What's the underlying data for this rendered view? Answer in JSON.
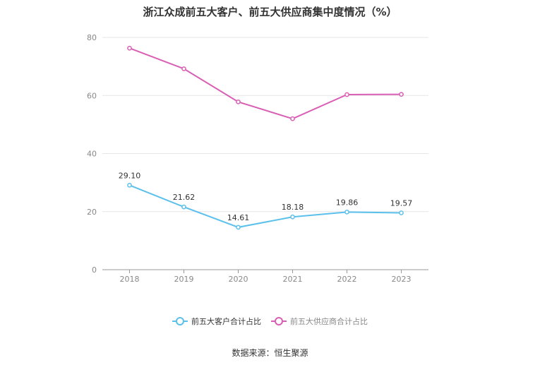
{
  "title": "浙江众成前五大客户、前五大供应商集中度情况（%）",
  "source": "数据来源：恒生聚源",
  "chart_data": {
    "type": "line",
    "title": "浙江众成前五大客户、前五大供应商集中度情况（%）",
    "x": [
      "2018",
      "2019",
      "2020",
      "2021",
      "2022",
      "2023"
    ],
    "ylim": [
      0,
      80
    ],
    "yticks": [
      "0",
      "20",
      "40",
      "60",
      "80"
    ],
    "grid": true,
    "legend_position": "bottom",
    "series": [
      {
        "name": "前五大客户合计占比",
        "color": "#5bc0eb",
        "values": [
          29.1,
          21.62,
          14.61,
          18.18,
          19.86,
          19.57
        ],
        "labels": [
          "29.10",
          "21.62",
          "14.61",
          "18.18",
          "19.86",
          "19.57"
        ]
      },
      {
        "name": "前五大供应商合计占比",
        "color": "#d95fb5",
        "values": [
          76.3,
          69.2,
          57.8,
          52.0,
          60.3,
          60.4
        ],
        "labels": []
      }
    ]
  }
}
